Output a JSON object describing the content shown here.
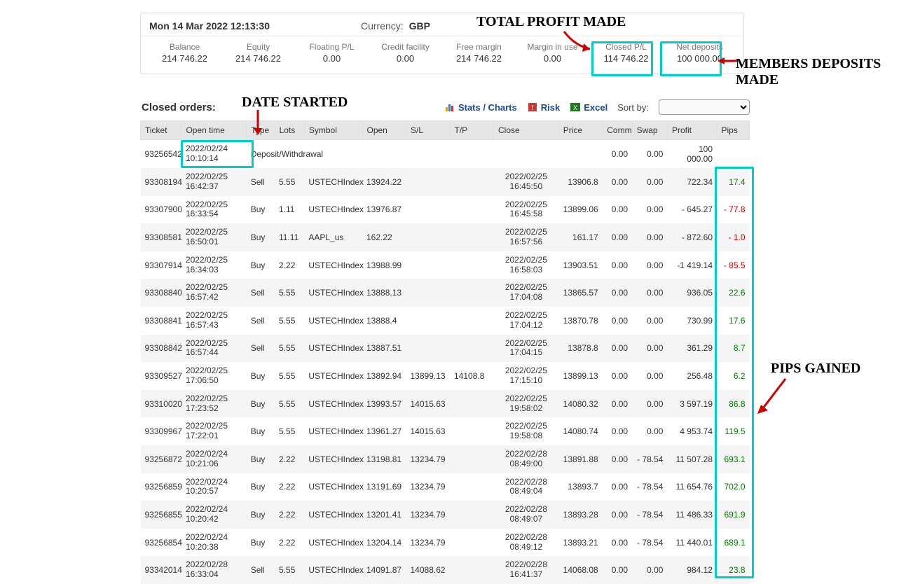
{
  "colors": {
    "highlight_border": "#00cccc",
    "arrow": "#cc0000",
    "positive": "#008000",
    "negative": "#cc0000",
    "header_bg": "#e6e6e6",
    "row_alt_bg": "#f5f5f5",
    "link": "#1a4aa0"
  },
  "annotations": {
    "total_profit": "TOTAL PROFIT MADE",
    "members_deposits": "MEMBERS DEPOSITS MADE",
    "date_started": "DATE STARTED",
    "pips_gained": "PIPS GAINED"
  },
  "header": {
    "datetime": "Mon 14 Mar 2022 12:13:30",
    "currency_label": "Currency:",
    "currency_value": "GBP"
  },
  "summary": [
    {
      "label": "Balance",
      "value": "214 746.22",
      "highlight": false
    },
    {
      "label": "Equity",
      "value": "214 746.22",
      "highlight": false
    },
    {
      "label": "Floating P/L",
      "value": "0.00",
      "highlight": false
    },
    {
      "label": "Credit facility",
      "value": "0.00",
      "highlight": false
    },
    {
      "label": "Free margin",
      "value": "214 746.22",
      "highlight": false
    },
    {
      "label": "Margin in use",
      "value": "0.00",
      "highlight": false
    },
    {
      "label": "Closed P/L",
      "value": "114 746.22",
      "highlight": true
    },
    {
      "label": "Net deposits",
      "value": "100 000.00",
      "highlight": true
    }
  ],
  "orders_section": {
    "title": "Closed orders:",
    "links": {
      "stats": "Stats / Charts",
      "risk": "Risk",
      "excel": "Excel"
    },
    "sort_label": "Sort by:",
    "sort_options": [
      ""
    ]
  },
  "columns": [
    "Ticket",
    "Open time",
    "Type",
    "Lots",
    "Symbol",
    "Open",
    "S/L",
    "T/P",
    "Close",
    "Price",
    "Comm",
    "Swap",
    "Profit",
    "Pips"
  ],
  "rows": [
    {
      "ticket": "93256542",
      "open_date": "2022/02/24",
      "open_time": "10:10:14",
      "type": "Deposit/Withdrawal",
      "is_deposit": true,
      "lots": "",
      "symbol": "",
      "open": "",
      "sl": "",
      "tp": "",
      "close_date": "",
      "close_time": "",
      "price": "",
      "comm": "0.00",
      "swap": "0.00",
      "profit": "100 000.00",
      "pips": "",
      "pips_sign": ""
    },
    {
      "ticket": "93308194",
      "open_date": "2022/02/25",
      "open_time": "16:42:37",
      "type": "Sell",
      "lots": "5.55",
      "symbol": "USTECHIndex",
      "open": "13924.22",
      "sl": "",
      "tp": "",
      "close_date": "2022/02/25",
      "close_time": "16:45:50",
      "price": "13906.8",
      "comm": "0.00",
      "swap": "0.00",
      "profit": "722.34",
      "pips": "17.4",
      "pips_sign": "pos"
    },
    {
      "ticket": "93307900",
      "open_date": "2022/02/25",
      "open_time": "16:33:54",
      "type": "Buy",
      "lots": "1.11",
      "symbol": "USTECHIndex",
      "open": "13976.87",
      "sl": "",
      "tp": "",
      "close_date": "2022/02/25",
      "close_time": "16:45:58",
      "price": "13899.06",
      "comm": "0.00",
      "swap": "0.00",
      "profit": "- 645.27",
      "pips": "- 77.8",
      "pips_sign": "neg"
    },
    {
      "ticket": "93308581",
      "open_date": "2022/02/25",
      "open_time": "16:50:01",
      "type": "Buy",
      "lots": "11.11",
      "symbol": "AAPL_us",
      "open": "162.22",
      "sl": "",
      "tp": "",
      "close_date": "2022/02/25",
      "close_time": "16:57:56",
      "price": "161.17",
      "comm": "0.00",
      "swap": "0.00",
      "profit": "- 872.60",
      "pips": "- 1.0",
      "pips_sign": "neg"
    },
    {
      "ticket": "93307914",
      "open_date": "2022/02/25",
      "open_time": "16:34:03",
      "type": "Buy",
      "lots": "2.22",
      "symbol": "USTECHIndex",
      "open": "13988.99",
      "sl": "",
      "tp": "",
      "close_date": "2022/02/25",
      "close_time": "16:58:03",
      "price": "13903.51",
      "comm": "0.00",
      "swap": "0.00",
      "profit": "-1 419.14",
      "pips": "- 85.5",
      "pips_sign": "neg"
    },
    {
      "ticket": "93308840",
      "open_date": "2022/02/25",
      "open_time": "16:57:42",
      "type": "Sell",
      "lots": "5.55",
      "symbol": "USTECHIndex",
      "open": "13888.13",
      "sl": "",
      "tp": "",
      "close_date": "2022/02/25",
      "close_time": "17:04:08",
      "price": "13865.57",
      "comm": "0.00",
      "swap": "0.00",
      "profit": "936.05",
      "pips": "22.6",
      "pips_sign": "pos"
    },
    {
      "ticket": "93308841",
      "open_date": "2022/02/25",
      "open_time": "16:57:43",
      "type": "Sell",
      "lots": "5.55",
      "symbol": "USTECHIndex",
      "open": "13888.4",
      "sl": "",
      "tp": "",
      "close_date": "2022/02/25",
      "close_time": "17:04:12",
      "price": "13870.78",
      "comm": "0.00",
      "swap": "0.00",
      "profit": "730.99",
      "pips": "17.6",
      "pips_sign": "pos"
    },
    {
      "ticket": "93308842",
      "open_date": "2022/02/25",
      "open_time": "16:57:44",
      "type": "Sell",
      "lots": "5.55",
      "symbol": "USTECHIndex",
      "open": "13887.51",
      "sl": "",
      "tp": "",
      "close_date": "2022/02/25",
      "close_time": "17:04:15",
      "price": "13878.8",
      "comm": "0.00",
      "swap": "0.00",
      "profit": "361.29",
      "pips": "8.7",
      "pips_sign": "pos"
    },
    {
      "ticket": "93309527",
      "open_date": "2022/02/25",
      "open_time": "17:06:50",
      "type": "Buy",
      "lots": "5.55",
      "symbol": "USTECHIndex",
      "open": "13892.94",
      "sl": "13899.13",
      "tp": "14108.8",
      "close_date": "2022/02/25",
      "close_time": "17:15:10",
      "price": "13899.13",
      "comm": "0.00",
      "swap": "0.00",
      "profit": "256.48",
      "pips": "6.2",
      "pips_sign": "pos"
    },
    {
      "ticket": "93310020",
      "open_date": "2022/02/25",
      "open_time": "17:23:52",
      "type": "Buy",
      "lots": "5.55",
      "symbol": "USTECHIndex",
      "open": "13993.57",
      "sl": "14015.63",
      "tp": "",
      "close_date": "2022/02/25",
      "close_time": "19:58:02",
      "price": "14080.32",
      "comm": "0.00",
      "swap": "0.00",
      "profit": "3 597.19",
      "pips": "86.8",
      "pips_sign": "pos"
    },
    {
      "ticket": "93309967",
      "open_date": "2022/02/25",
      "open_time": "17:22:01",
      "type": "Buy",
      "lots": "5.55",
      "symbol": "USTECHIndex",
      "open": "13961.27",
      "sl": "14015.63",
      "tp": "",
      "close_date": "2022/02/25",
      "close_time": "19:58:08",
      "price": "14080.74",
      "comm": "0.00",
      "swap": "0.00",
      "profit": "4 953.74",
      "pips": "119.5",
      "pips_sign": "pos"
    },
    {
      "ticket": "93256872",
      "open_date": "2022/02/24",
      "open_time": "10:21:06",
      "type": "Buy",
      "lots": "2.22",
      "symbol": "USTECHIndex",
      "open": "13198.81",
      "sl": "13234.79",
      "tp": "",
      "close_date": "2022/02/28",
      "close_time": "08:49:00",
      "price": "13891.88",
      "comm": "0.00",
      "swap": "- 78.54",
      "profit": "11 507.28",
      "pips": "693.1",
      "pips_sign": "pos"
    },
    {
      "ticket": "93256859",
      "open_date": "2022/02/24",
      "open_time": "10:20:57",
      "type": "Buy",
      "lots": "2.22",
      "symbol": "USTECHIndex",
      "open": "13191.69",
      "sl": "13234.79",
      "tp": "",
      "close_date": "2022/02/28",
      "close_time": "08:49:04",
      "price": "13893.7",
      "comm": "0.00",
      "swap": "- 78.54",
      "profit": "11 654.76",
      "pips": "702.0",
      "pips_sign": "pos"
    },
    {
      "ticket": "93256855",
      "open_date": "2022/02/24",
      "open_time": "10:20:42",
      "type": "Buy",
      "lots": "2.22",
      "symbol": "USTECHIndex",
      "open": "13201.41",
      "sl": "13234.79",
      "tp": "",
      "close_date": "2022/02/28",
      "close_time": "08:49:07",
      "price": "13893.28",
      "comm": "0.00",
      "swap": "- 78.54",
      "profit": "11 486.33",
      "pips": "691.9",
      "pips_sign": "pos"
    },
    {
      "ticket": "93256854",
      "open_date": "2022/02/24",
      "open_time": "10:20:38",
      "type": "Buy",
      "lots": "2.22",
      "symbol": "USTECHIndex",
      "open": "13204.14",
      "sl": "13234.79",
      "tp": "",
      "close_date": "2022/02/28",
      "close_time": "08:49:12",
      "price": "13893.21",
      "comm": "0.00",
      "swap": "- 78.54",
      "profit": "11 440.01",
      "pips": "689.1",
      "pips_sign": "pos"
    },
    {
      "ticket": "93342014",
      "open_date": "2022/02/28",
      "open_time": "16:33:04",
      "type": "Sell",
      "lots": "5.55",
      "symbol": "USTECHIndex",
      "open": "14091.87",
      "sl": "14088.62",
      "tp": "",
      "close_date": "2022/02/28",
      "close_time": "16:41:37",
      "price": "14068.08",
      "comm": "0.00",
      "swap": "0.00",
      "profit": "984.12",
      "pips": "23.8",
      "pips_sign": "pos"
    }
  ]
}
